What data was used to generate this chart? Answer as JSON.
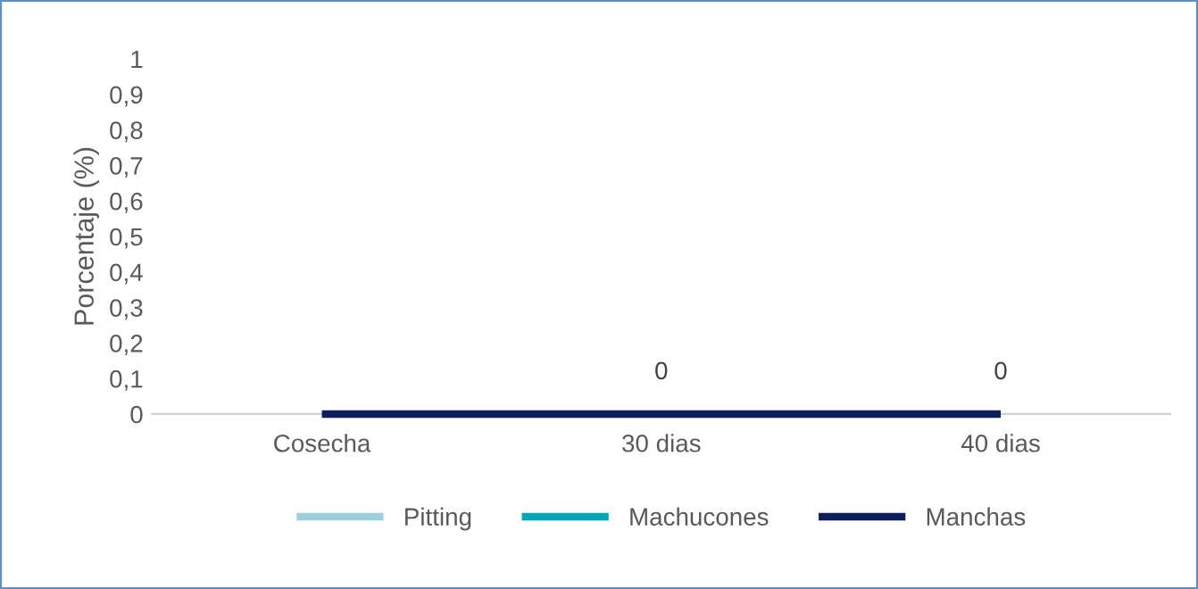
{
  "chart_data": {
    "type": "line",
    "ylabel": "Porcentaje (%)",
    "categories": [
      "Cosecha",
      "30 dias",
      "40 dias"
    ],
    "series": [
      {
        "name": "Pitting",
        "color": "#9dcfdc",
        "values": [
          null,
          null,
          null
        ]
      },
      {
        "name": "Machucones",
        "color": "#00a6b6",
        "values": [
          null,
          null,
          null
        ]
      },
      {
        "name": "Manchas",
        "color": "#0c1e5b",
        "values": [
          0,
          0,
          0
        ],
        "value_labels": [
          null,
          "0",
          "0"
        ]
      }
    ],
    "ylim": [
      0,
      1
    ],
    "yticks": [
      0,
      {
        "value": 0.1,
        "label": "0,1"
      },
      {
        "value": 0.2,
        "label": "0,2"
      },
      {
        "value": 0.3,
        "label": "0,3"
      },
      {
        "value": 0.4,
        "label": "0,4"
      },
      {
        "value": 0.5,
        "label": "0,5"
      },
      {
        "value": 0.6,
        "label": "0,6"
      },
      {
        "value": 0.7,
        "label": "0,7"
      },
      {
        "value": 0.8,
        "label": "0,8"
      },
      {
        "value": 0.9,
        "label": "0,9"
      },
      1
    ],
    "grid": false,
    "legend": "bottom",
    "marker": "none",
    "line_style": "solid"
  }
}
